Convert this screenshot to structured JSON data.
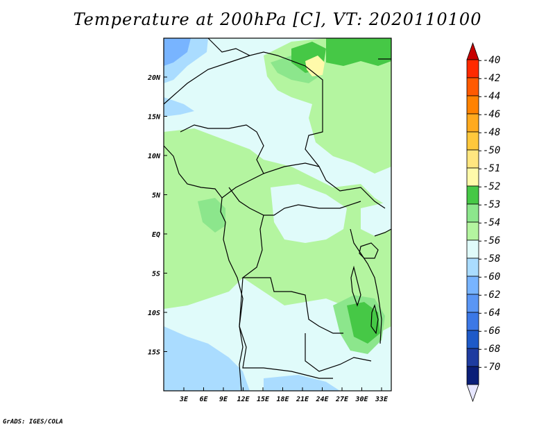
{
  "title": "Temperature at 200hPa [C], VT: 2020110100",
  "credit": "GrADS: IGES/COLA",
  "map": {
    "lat_ticks": [
      "20N",
      "15N",
      "10N",
      "5N",
      "EQ",
      "5S",
      "10S",
      "15S"
    ],
    "lon_ticks": [
      "3E",
      "6E",
      "9E",
      "12E",
      "15E",
      "18E",
      "21E",
      "24E",
      "27E",
      "30E",
      "33E"
    ]
  },
  "colorbar": {
    "levels": [
      {
        "label": "-40",
        "color": "#ff2a00"
      },
      {
        "label": "-42",
        "color": "#ff5a00"
      },
      {
        "label": "-44",
        "color": "#ff8200"
      },
      {
        "label": "-46",
        "color": "#ffaa1e"
      },
      {
        "label": "-48",
        "color": "#ffc83c"
      },
      {
        "label": "-50",
        "color": "#ffe680"
      },
      {
        "label": "-51",
        "color": "#fffaaa"
      },
      {
        "label": "-52",
        "color": "#46c846"
      },
      {
        "label": "-53",
        "color": "#8ce68c"
      },
      {
        "label": "-54",
        "color": "#b4f5a0"
      },
      {
        "label": "-56",
        "color": "#e0fbfa"
      },
      {
        "label": "-58",
        "color": "#aadcff"
      },
      {
        "label": "-60",
        "color": "#78b4ff"
      },
      {
        "label": "-62",
        "color": "#5a96f5"
      },
      {
        "label": "-64",
        "color": "#3c78e6"
      },
      {
        "label": "-66",
        "color": "#1e5ac8"
      },
      {
        "label": "-68",
        "color": "#1e3ca0"
      },
      {
        "label": "-70",
        "color": "#0a1e78"
      }
    ],
    "top_arrow_color": "#c80000",
    "bottom_arrow_color": "#e6e6ff"
  }
}
